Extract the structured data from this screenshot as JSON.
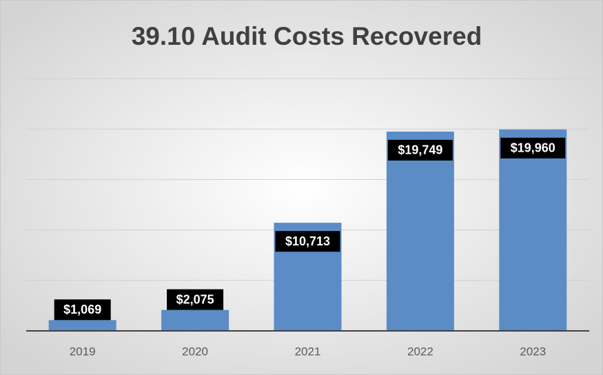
{
  "chart_data": {
    "type": "bar",
    "title": "39.10 Audit Costs Recovered",
    "categories": [
      "2019",
      "2020",
      "2021",
      "2022",
      "2023"
    ],
    "values": [
      1069,
      2075,
      10713,
      19749,
      19960
    ],
    "value_labels": [
      "$1,069",
      "$2,075",
      "$10,713",
      "$19,749",
      "$19,960"
    ],
    "color": "#5b8cc6",
    "ylim": [
      0,
      25000
    ],
    "yticks": [
      0,
      5000,
      10000,
      15000,
      20000,
      25000
    ],
    "grid": true
  }
}
